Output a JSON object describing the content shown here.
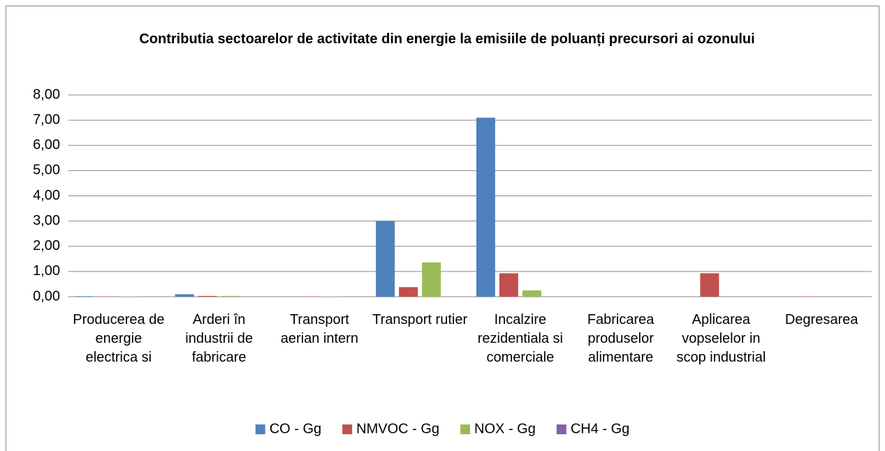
{
  "chart_data": {
    "type": "bar",
    "title": "Contributia sectoarelor de activitate din energie la emisiile de poluanți precursori ai ozonului",
    "categories": [
      "Producerea de energie electrica si",
      "Arderi în industrii de fabricare",
      "Transport aerian intern",
      "Transport rutier",
      "Incalzire rezidentiala si comerciale",
      "Fabricarea produselor alimentare",
      "Aplicarea vopselelor in scop industrial",
      "Degresarea"
    ],
    "series": [
      {
        "name": "CO - Gg",
        "color": "#4f81bd",
        "values": [
          0.02,
          0.1,
          0.01,
          3.0,
          7.1,
          0,
          0,
          0
        ]
      },
      {
        "name": "NMVOC - Gg",
        "color": "#c0504d",
        "values": [
          0.01,
          0.03,
          0.01,
          0.38,
          0.93,
          0.01,
          0.93,
          0.01
        ]
      },
      {
        "name": "NOX - Gg",
        "color": "#9bbb59",
        "values": [
          0.01,
          0.03,
          0.01,
          1.36,
          0.25,
          0,
          0,
          0
        ]
      },
      {
        "name": "CH4 - Gg",
        "color": "#8064a2",
        "values": [
          0,
          0,
          0,
          0.01,
          0.01,
          0,
          0,
          0
        ]
      }
    ],
    "ylim": [
      0,
      8
    ],
    "yticks": [
      {
        "value": 0,
        "label": "0,00"
      },
      {
        "value": 1,
        "label": "1,00"
      },
      {
        "value": 2,
        "label": "2,00"
      },
      {
        "value": 3,
        "label": "3,00"
      },
      {
        "value": 4,
        "label": "4,00"
      },
      {
        "value": 5,
        "label": "5,00"
      },
      {
        "value": 6,
        "label": "6,00"
      },
      {
        "value": 7,
        "label": "7,00"
      },
      {
        "value": 8,
        "label": "8,00"
      }
    ],
    "grid": true,
    "legend": "bottom"
  }
}
